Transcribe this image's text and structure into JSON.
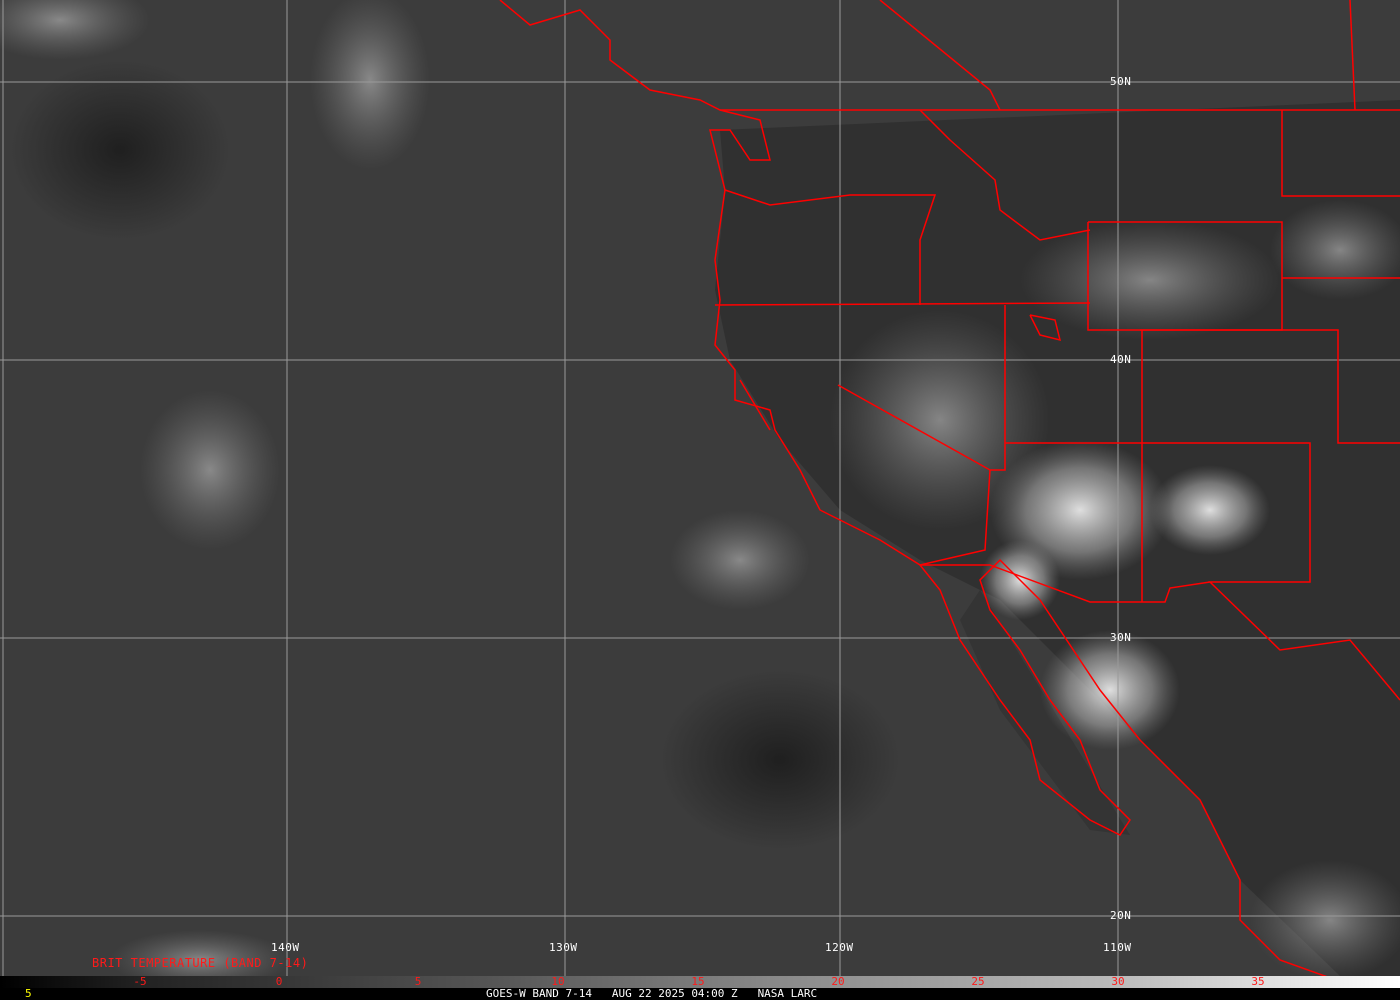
{
  "map": {
    "satellite_product": "GOES-W BAND 7-14",
    "title": "BRIT TEMPERATURE (BAND 7-14)",
    "latitude_labels": [
      "50N",
      "40N",
      "30N",
      "20N"
    ],
    "longitude_labels": [
      "140W",
      "130W",
      "120W",
      "110W"
    ],
    "border_color": "#ff0000",
    "grid_color": "#9a9a9a"
  },
  "colorbar": {
    "ticks": [
      "-5",
      "0",
      "5",
      "10",
      "15",
      "20",
      "25",
      "30",
      "35"
    ],
    "left_value": "5",
    "tick_color": "#ff1a1a",
    "left_value_color": "#ffff00"
  },
  "footer": {
    "product": "GOES-W BAND 7-14",
    "datetime": "AUG 22 2025 04:00 Z",
    "source": "NASA LARC"
  }
}
